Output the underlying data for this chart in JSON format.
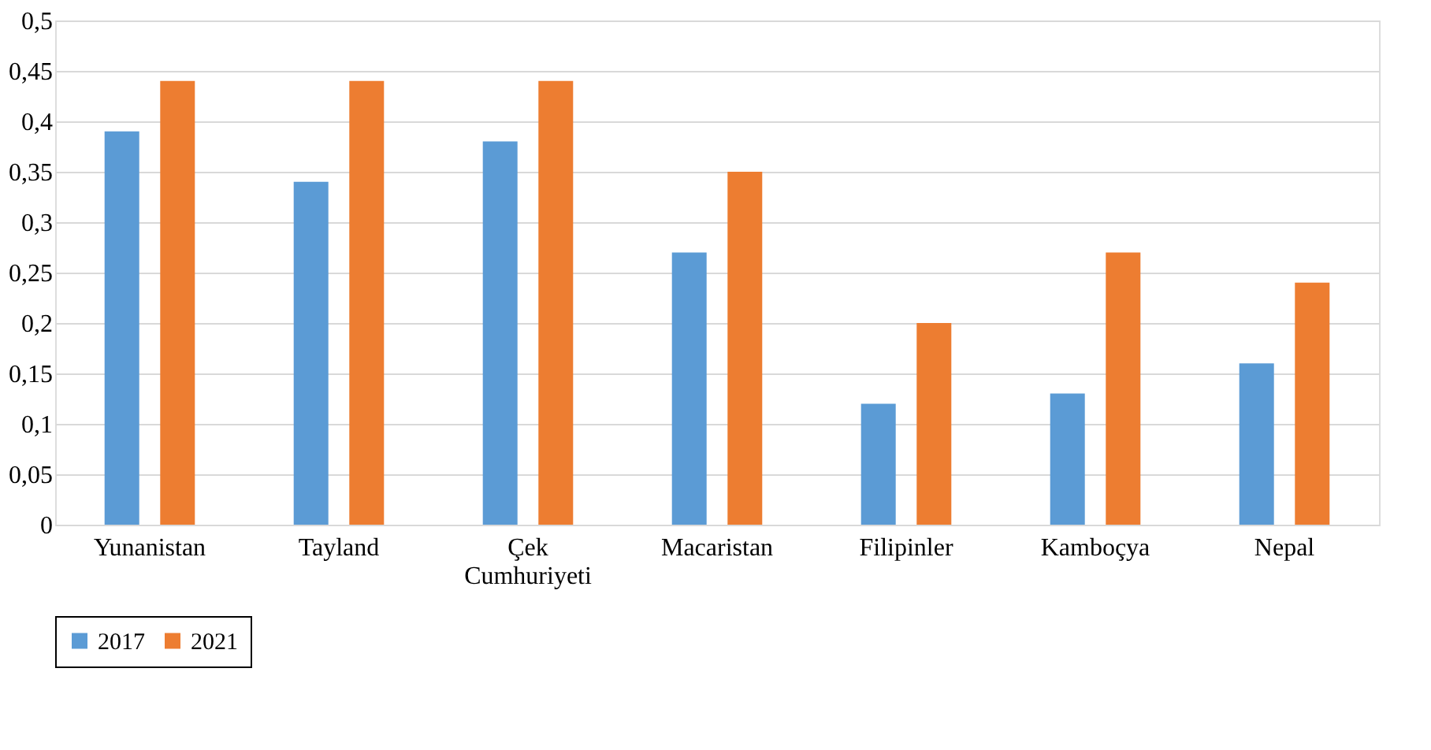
{
  "chart_data": {
    "type": "bar",
    "categories": [
      "Yunanistan",
      "Tayland",
      "Çek Cumhuriyeti",
      "Macaristan",
      "Filipinler",
      "Kamboçya",
      "Nepal"
    ],
    "series": [
      {
        "name": "2017",
        "color": "#5b9bd5",
        "values": [
          0.39,
          0.34,
          0.38,
          0.27,
          0.12,
          0.13,
          0.16
        ]
      },
      {
        "name": "2021",
        "color": "#ed7d31",
        "values": [
          0.44,
          0.44,
          0.44,
          0.35,
          0.2,
          0.27,
          0.24
        ]
      }
    ],
    "ylim": [
      0,
      0.5
    ],
    "yticks": [
      0,
      {
        "value": 0.05,
        "label": "0,05"
      },
      {
        "value": 0.1,
        "label": "0,1"
      },
      {
        "value": 0.15,
        "label": "0,15"
      },
      {
        "value": 0.2,
        "label": "0,2"
      },
      {
        "value": 0.25,
        "label": "0,25"
      },
      {
        "value": 0.3,
        "label": "0,3"
      },
      {
        "value": 0.35,
        "label": "0,35"
      },
      {
        "value": 0.4,
        "label": "0,4"
      },
      {
        "value": 0.45,
        "label": "0,45"
      },
      {
        "value": 0.5,
        "label": "0,5"
      }
    ],
    "grid": "y",
    "legend": "bottom"
  }
}
